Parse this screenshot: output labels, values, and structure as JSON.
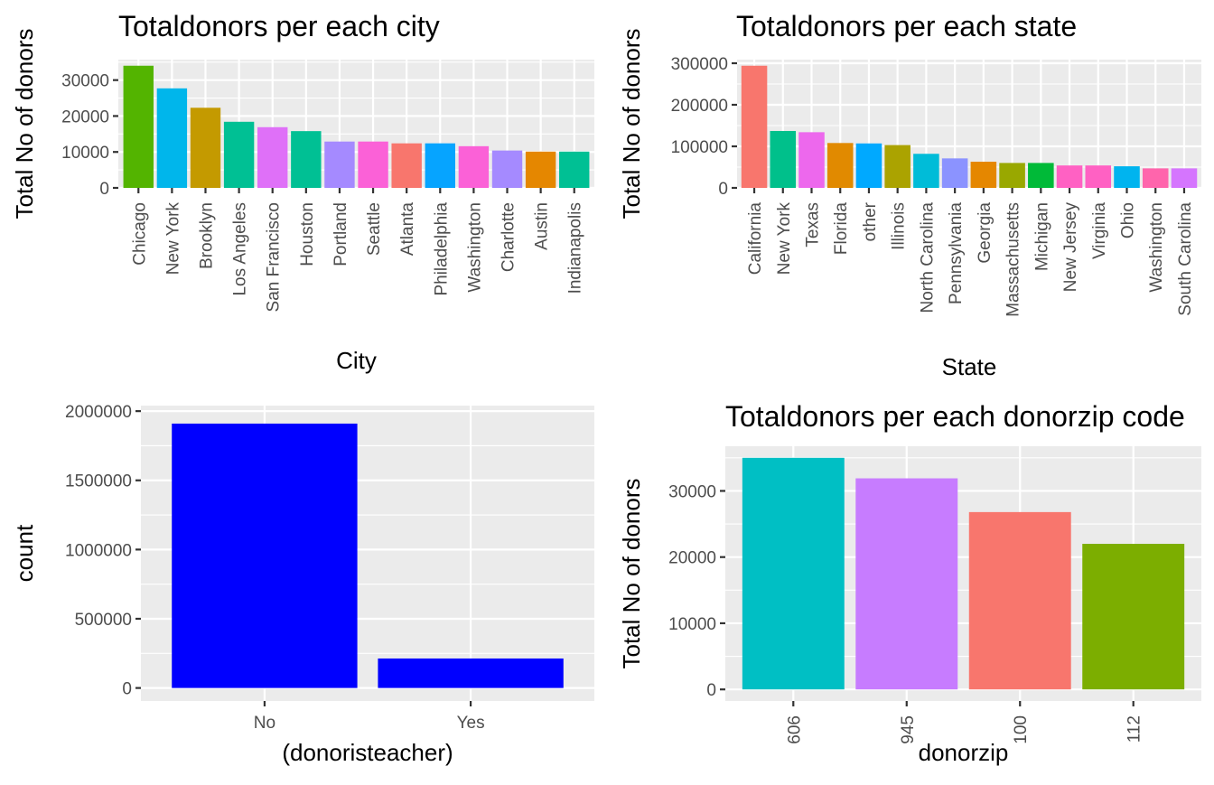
{
  "chart_data": [
    {
      "id": "city",
      "type": "bar",
      "title": "Totaldonors per each city",
      "xlabel": "City",
      "ylabel": "Total No of donors",
      "categories": [
        "Chicago",
        "New York",
        "Brooklyn",
        "Los Angeles",
        "San Francisco",
        "Houston",
        "Portland",
        "Seattle",
        "Atlanta",
        "Philadelphia",
        "Washington",
        "Charlotte",
        "Austin",
        "Indianapolis"
      ],
      "values": [
        34000,
        27700,
        22300,
        18400,
        16900,
        15800,
        12900,
        12900,
        12400,
        12400,
        11600,
        10400,
        10100,
        10100
      ],
      "colors": [
        "#53B400",
        "#00B6EB",
        "#C49A00",
        "#00C094",
        "#DF70F8",
        "#00C094",
        "#A58AFF",
        "#FB61D7",
        "#F8766D",
        "#06A4FF",
        "#FB61D7",
        "#A58AFF",
        "#E58700",
        "#00C094"
      ],
      "ylim": [
        0,
        35700
      ],
      "yticks": [
        0,
        10000,
        20000,
        30000
      ],
      "x_label_rotation": "vertical"
    },
    {
      "id": "state",
      "type": "bar",
      "title": "Totaldonors per each state",
      "xlabel": "State",
      "ylabel": "Total No of donors",
      "categories": [
        "California",
        "New York",
        "Texas",
        "Florida",
        "other",
        "Illinois",
        "North Carolina",
        "Pennsylvania",
        "Georgia",
        "Massachusetts",
        "Michigan",
        "New Jersey",
        "Virginia",
        "Ohio",
        "Washington",
        "South Carolina"
      ],
      "values": [
        294000,
        137000,
        134000,
        108000,
        107000,
        103000,
        82000,
        71000,
        63000,
        60000,
        60000,
        54000,
        54000,
        52000,
        47000,
        47000
      ],
      "colors": [
        "#F8766D",
        "#00C08B",
        "#ED68ED",
        "#E18A00",
        "#00A9FF",
        "#ABA300",
        "#00BCD8",
        "#8B93FF",
        "#E58700",
        "#99A800",
        "#00BA38",
        "#FF61C3",
        "#FF61C3",
        "#00B4EF",
        "#FF65AC",
        "#D575FE"
      ],
      "ylim": [
        0,
        308700
      ],
      "yticks": [
        0,
        100000,
        200000,
        300000
      ],
      "x_label_rotation": "vertical"
    },
    {
      "id": "teacher",
      "type": "bar",
      "title": "",
      "xlabel": "(donoristeacher)",
      "ylabel": "count",
      "categories": [
        "No",
        "Yes"
      ],
      "values": [
        1910000,
        213000
      ],
      "colors": [
        "#0000FF",
        "#0000FF"
      ],
      "ylim": [
        -94000,
        2040000
      ],
      "yticks": [
        0,
        500000,
        1000000,
        1500000,
        2000000
      ],
      "x_label_rotation": "horizontal"
    },
    {
      "id": "zip",
      "type": "bar",
      "title": "Totaldonors per each donorzip code",
      "xlabel": "donorzip",
      "ylabel": "Total No of donors",
      "categories": [
        "606",
        "945",
        "100",
        "112"
      ],
      "values": [
        35000,
        31900,
        26800,
        22000
      ],
      "colors": [
        "#00BFC4",
        "#C77CFF",
        "#F8766D",
        "#7CAE00"
      ],
      "ylim": [
        -1750,
        36750
      ],
      "yticks": [
        0,
        10000,
        20000,
        30000
      ],
      "x_label_rotation": "vertical"
    }
  ]
}
